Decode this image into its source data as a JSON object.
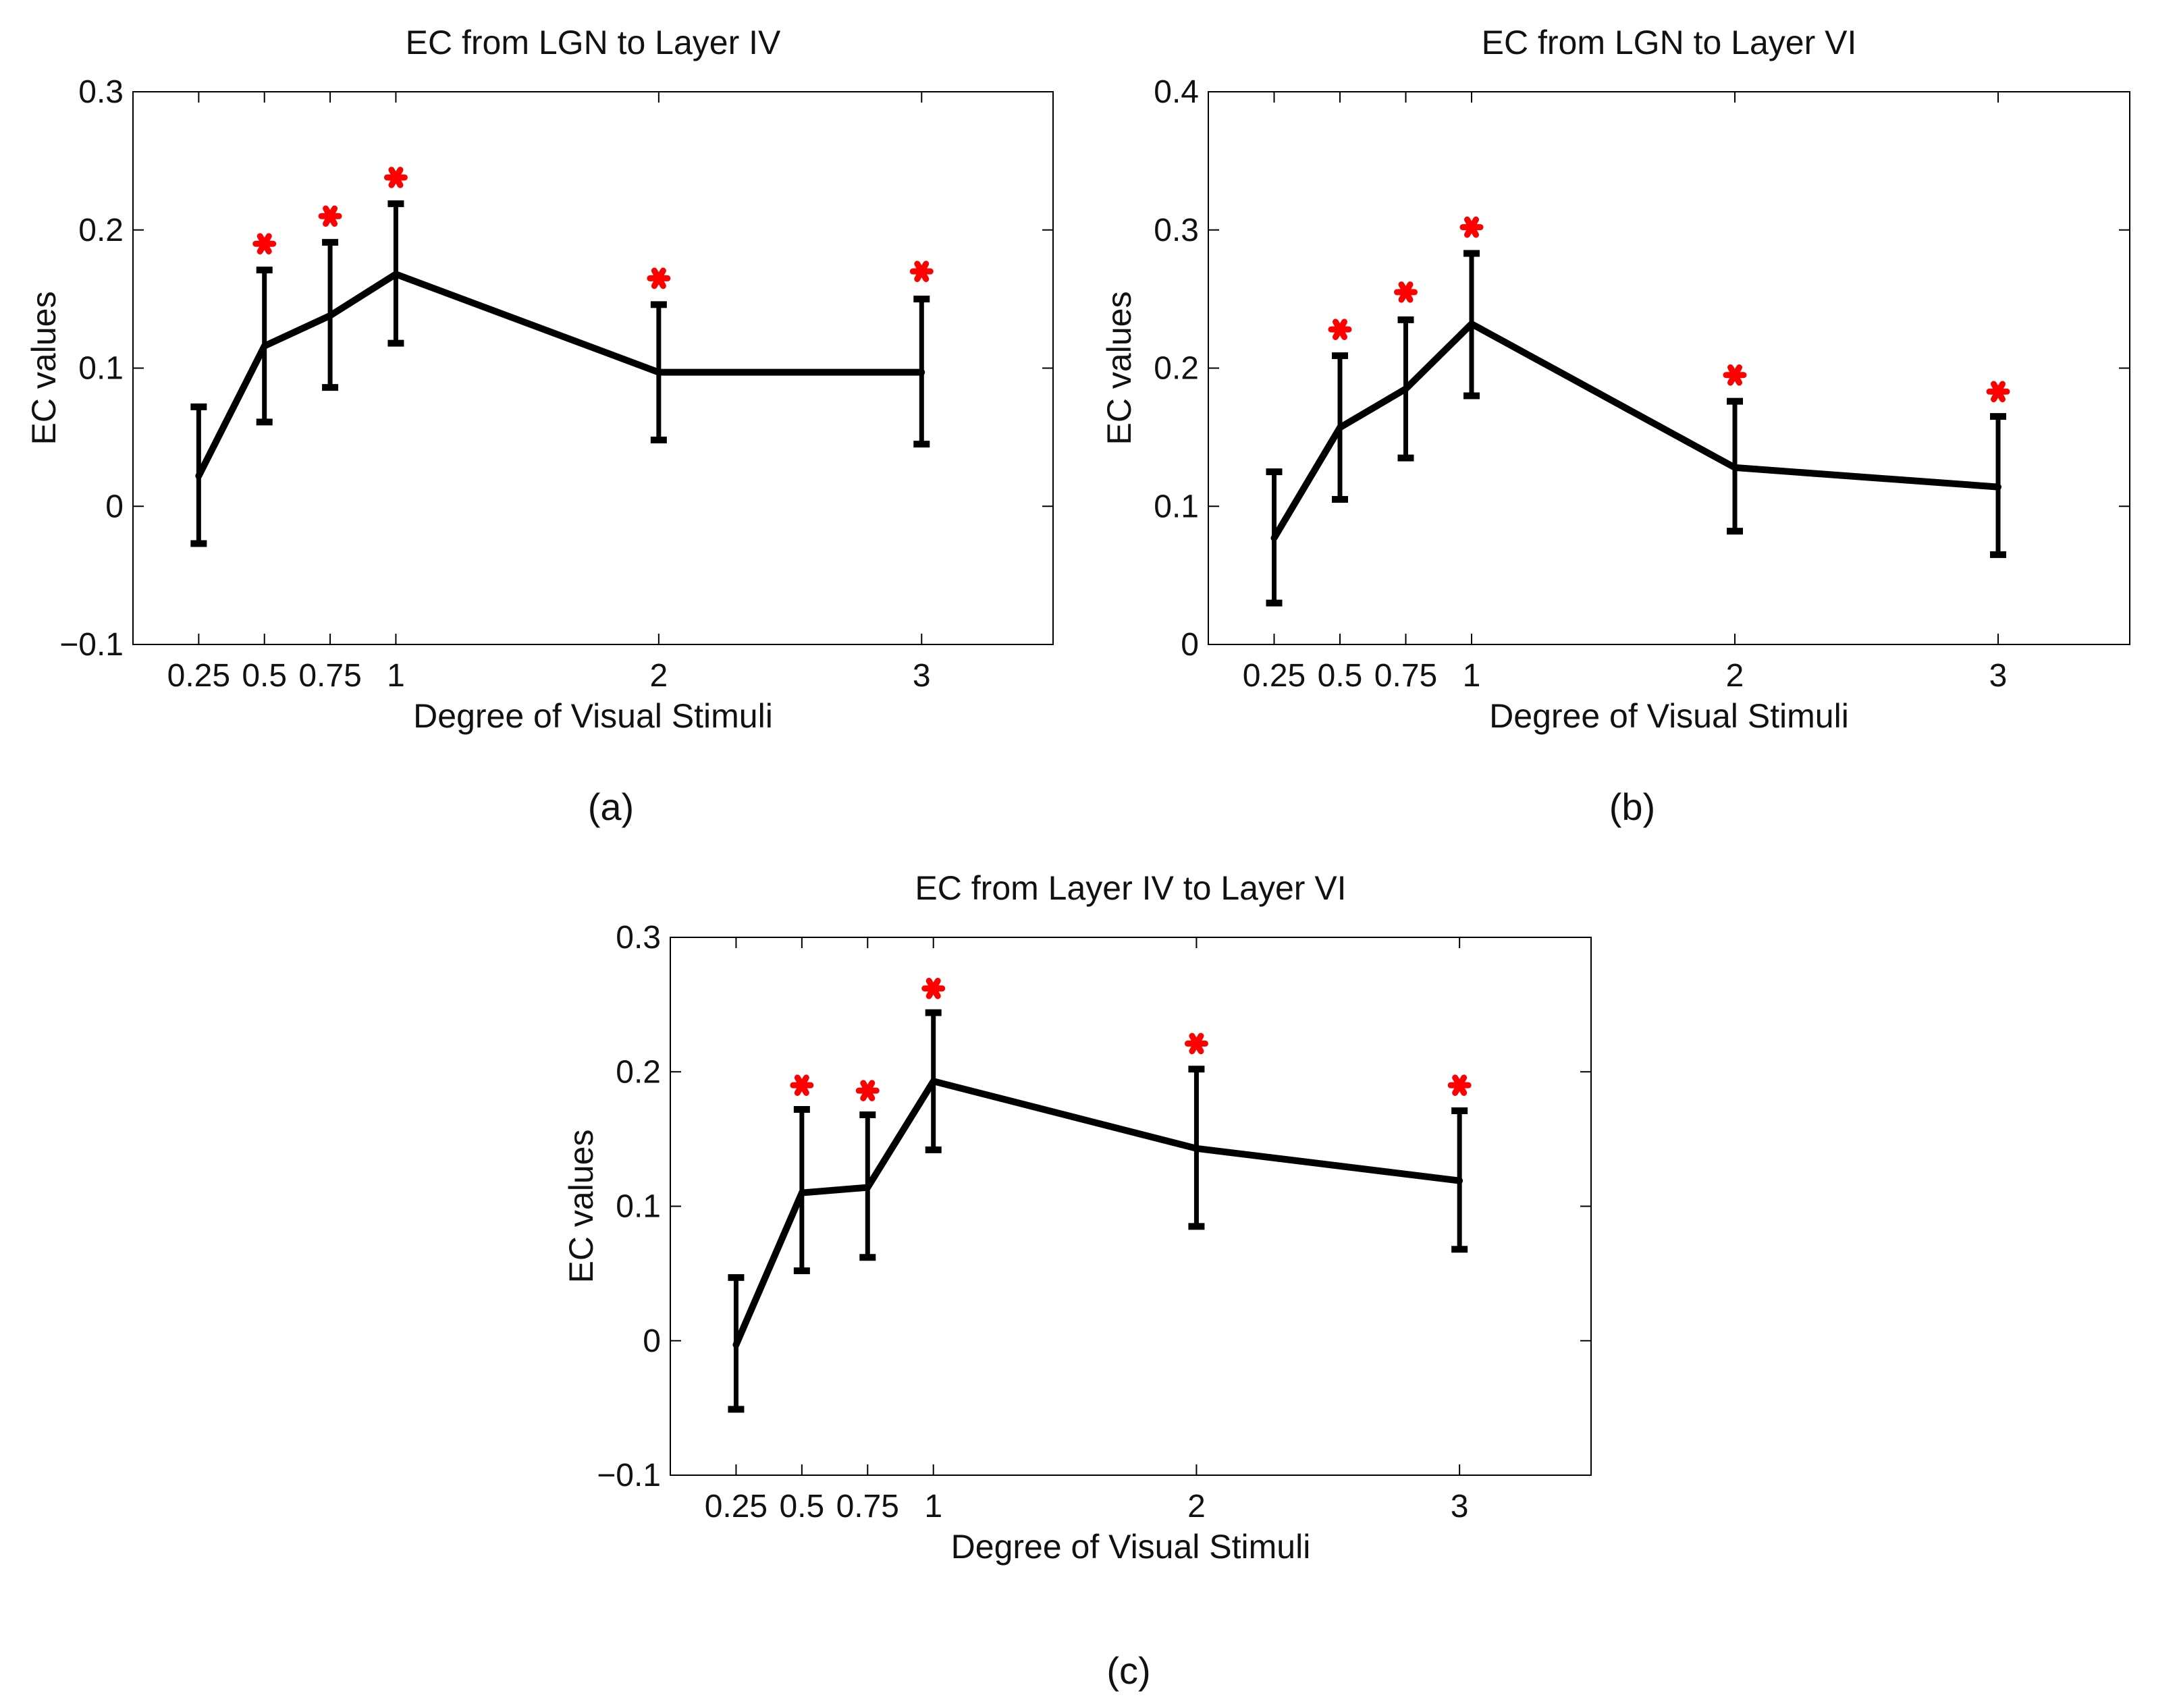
{
  "chart_data": [
    {
      "type": "line",
      "title": "EC from LGN to Layer IV",
      "caption": "(a)",
      "xlabel": "Degree of Visual Stimuli",
      "ylabel": "EC values",
      "x": [
        0.25,
        0.5,
        0.75,
        1,
        2,
        3
      ],
      "xtick_labels": [
        "0.25",
        "0.5",
        "0.75",
        "1",
        "2",
        "3"
      ],
      "xlim": [
        0,
        3.5
      ],
      "ylim": [
        -0.1,
        0.3
      ],
      "yticks": [
        -0.1,
        0,
        0.1,
        0.2,
        0.3
      ],
      "ytick_labels": [
        "−0.1",
        "0",
        "0.1",
        "0.2",
        "0.3"
      ],
      "series": [
        {
          "name": "EC",
          "values": [
            0.022,
            0.116,
            0.138,
            0.168,
            0.097,
            0.097
          ],
          "err_low": [
            -0.027,
            0.061,
            0.086,
            0.118,
            0.048,
            0.045
          ],
          "err_high": [
            0.072,
            0.171,
            0.191,
            0.219,
            0.146,
            0.15
          ]
        }
      ],
      "significance_markers": {
        "symbol": "*",
        "color": "#ff0000",
        "x": [
          0.5,
          0.75,
          1,
          2,
          3
        ],
        "y": [
          0.19,
          0.21,
          0.238,
          0.165,
          0.17
        ]
      }
    },
    {
      "type": "line",
      "title": "EC from LGN to Layer VI",
      "caption": "(b)",
      "xlabel": "Degree of Visual Stimuli",
      "ylabel": "EC values",
      "x": [
        0.25,
        0.5,
        0.75,
        1,
        2,
        3
      ],
      "xtick_labels": [
        "0.25",
        "0.5",
        "0.75",
        "1",
        "2",
        "3"
      ],
      "xlim": [
        0,
        3.5
      ],
      "ylim": [
        0,
        0.4
      ],
      "yticks": [
        0,
        0.1,
        0.2,
        0.3,
        0.4
      ],
      "ytick_labels": [
        "0",
        "0.1",
        "0.2",
        "0.3",
        "0.4"
      ],
      "series": [
        {
          "name": "EC",
          "values": [
            0.077,
            0.157,
            0.185,
            0.232,
            0.128,
            0.114
          ],
          "err_low": [
            0.03,
            0.105,
            0.135,
            0.18,
            0.082,
            0.065
          ],
          "err_high": [
            0.125,
            0.209,
            0.235,
            0.283,
            0.176,
            0.165
          ]
        }
      ],
      "significance_markers": {
        "symbol": "*",
        "color": "#ff0000",
        "x": [
          0.5,
          0.75,
          1,
          2,
          3
        ],
        "y": [
          0.228,
          0.255,
          0.302,
          0.195,
          0.183
        ]
      }
    },
    {
      "type": "line",
      "title": "EC from Layer IV to Layer VI",
      "caption": "(c)",
      "xlabel": "Degree of Visual Stimuli",
      "ylabel": "EC values",
      "x": [
        0.25,
        0.5,
        0.75,
        1,
        2,
        3
      ],
      "xtick_labels": [
        "0.25",
        "0.5",
        "0.75",
        "1",
        "2",
        "3"
      ],
      "xlim": [
        0,
        3.5
      ],
      "ylim": [
        -0.1,
        0.3
      ],
      "yticks": [
        -0.1,
        0,
        0.1,
        0.2,
        0.3
      ],
      "ytick_labels": [
        "−0.1",
        "0",
        "0.1",
        "0.2",
        "0.3"
      ],
      "series": [
        {
          "name": "EC",
          "values": [
            -0.003,
            0.11,
            0.114,
            0.193,
            0.143,
            0.119
          ],
          "err_low": [
            -0.051,
            0.052,
            0.062,
            0.142,
            0.085,
            0.068
          ],
          "err_high": [
            0.047,
            0.172,
            0.168,
            0.244,
            0.202,
            0.171
          ]
        }
      ],
      "significance_markers": {
        "symbol": "*",
        "color": "#ff0000",
        "x": [
          0.5,
          0.75,
          1,
          2,
          3
        ],
        "y": [
          0.19,
          0.186,
          0.262,
          0.221,
          0.19
        ]
      }
    }
  ]
}
